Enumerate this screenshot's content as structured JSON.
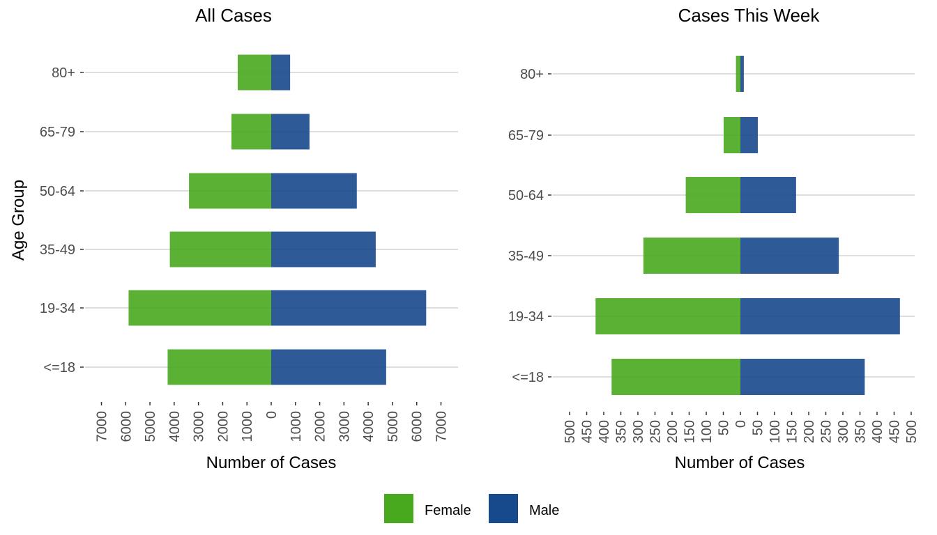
{
  "chart_data": [
    {
      "type": "bar",
      "orientation": "horizontal",
      "layout": "diverging",
      "title": "All Cases",
      "xlabel": "Number of Cases",
      "ylabel": "Age Group",
      "categories": [
        "80+",
        "65-79",
        "50-64",
        "35-49",
        "19-34",
        "<=18"
      ],
      "series": [
        {
          "name": "Female",
          "side": "left",
          "values": [
            1380,
            1640,
            3390,
            4180,
            5880,
            4270
          ]
        },
        {
          "name": "Male",
          "side": "right",
          "values": [
            780,
            1580,
            3530,
            4310,
            6390,
            4740
          ]
        }
      ],
      "xlim": [
        -7000,
        7000
      ],
      "xticks": [
        -7000,
        -6000,
        -5000,
        -4000,
        -3000,
        -2000,
        -1000,
        0,
        1000,
        2000,
        3000,
        4000,
        5000,
        6000,
        7000
      ],
      "xtick_labels": [
        "7000",
        "6000",
        "5000",
        "4000",
        "3000",
        "2000",
        "1000",
        "0",
        "1000",
        "2000",
        "3000",
        "4000",
        "5000",
        "6000",
        "7000"
      ],
      "grid": "horizontal-major"
    },
    {
      "type": "bar",
      "orientation": "horizontal",
      "layout": "diverging",
      "title": "Cases This Week",
      "xlabel": "Number of Cases",
      "ylabel": "",
      "categories": [
        "80+",
        "65-79",
        "50-64",
        "35-49",
        "19-34",
        "<=18"
      ],
      "series": [
        {
          "name": "Female",
          "side": "left",
          "values": [
            13,
            49,
            160,
            284,
            424,
            377
          ]
        },
        {
          "name": "Male",
          "side": "right",
          "values": [
            10,
            51,
            163,
            288,
            467,
            364
          ]
        }
      ],
      "xlim": [
        -500,
        500
      ],
      "xticks": [
        -500,
        -450,
        -400,
        -350,
        -300,
        -250,
        -200,
        -150,
        -100,
        -50,
        0,
        50,
        100,
        150,
        200,
        250,
        300,
        350,
        400,
        450,
        500
      ],
      "xtick_labels": [
        "500",
        "450",
        "400",
        "350",
        "300",
        "250",
        "200",
        "150",
        "100",
        "50",
        "0",
        "50",
        "100",
        "150",
        "200",
        "250",
        "300",
        "350",
        "400",
        "450",
        "500"
      ],
      "grid": "horizontal-major"
    }
  ],
  "legend": {
    "position": "bottom",
    "items": [
      {
        "label": "Female",
        "color": "#48a81e"
      },
      {
        "label": "Male",
        "color": "#17498d"
      }
    ]
  },
  "colors": {
    "female_bar": "#48a81e",
    "male_bar": "#17498d",
    "grid": "#d3d3d3",
    "tick_text": "#4d4d4d"
  }
}
